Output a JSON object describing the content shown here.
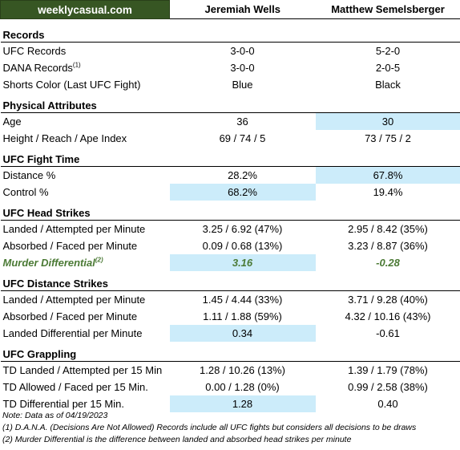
{
  "header": {
    "brand": "weeklycasual.com",
    "fighter1": "Jeremiah Wells",
    "fighter2": "Matthew Semelsberger"
  },
  "sections": {
    "records": {
      "title": "Records",
      "ufc": {
        "label": "UFC Records",
        "v1": "3-0-0",
        "v2": "5-2-0"
      },
      "dana": {
        "label": "DANA Records",
        "sup": "(1)",
        "v1": "3-0-0",
        "v2": "2-0-5"
      },
      "shorts": {
        "label": "Shorts Color (Last UFC Fight)",
        "v1": "Blue",
        "v2": "Black"
      }
    },
    "physical": {
      "title": "Physical Attributes",
      "age": {
        "label": "Age",
        "v1": "36",
        "v2": "30"
      },
      "height": {
        "label": "Height / Reach / Ape Index",
        "v1": "69 / 74 / 5",
        "v2": "73 / 75 / 2"
      }
    },
    "fight_time": {
      "title": "UFC Fight Time",
      "distance": {
        "label": "Distance %",
        "v1": "28.2%",
        "v2": "67.8%"
      },
      "control": {
        "label": "Control %",
        "v1": "68.2%",
        "v2": "19.4%"
      }
    },
    "head": {
      "title": "UFC Head Strikes",
      "landed": {
        "label": "Landed / Attempted per Minute",
        "v1": "3.25 / 6.92 (47%)",
        "v2": "2.95 / 8.42 (35%)"
      },
      "absorbed": {
        "label": "Absorbed / Faced per Minute",
        "v1": "0.09 / 0.68 (13%)",
        "v2": "3.23 / 8.87 (36%)"
      },
      "murder": {
        "label": "Murder Differential",
        "sup": "(2)",
        "v1": "3.16",
        "v2": "-0.28"
      }
    },
    "distance": {
      "title": "UFC Distance Strikes",
      "landed": {
        "label": "Landed / Attempted per Minute",
        "v1": "1.45 / 4.44 (33%)",
        "v2": "3.71 / 9.28 (40%)"
      },
      "absorbed": {
        "label": "Absorbed / Faced per Minute",
        "v1": "1.11 / 1.88 (59%)",
        "v2": "4.32 / 10.16 (43%)"
      },
      "diff": {
        "label": "Landed Differential per Minute",
        "v1": "0.34",
        "v2": "-0.61"
      }
    },
    "grappling": {
      "title": "UFC Grappling",
      "td_landed": {
        "label": "TD Landed / Attempted per 15 Min",
        "v1": "1.28 / 10.26 (13%)",
        "v2": "1.39 / 1.79 (78%)"
      },
      "td_allowed": {
        "label": "TD Allowed / Faced per 15 Min.",
        "v1": "0.00 / 1.28 (0%)",
        "v2": "0.99 / 2.58 (38%)"
      },
      "td_diff": {
        "label": "TD Differential per 15 Min.",
        "v1": "1.28",
        "v2": "0.40"
      }
    }
  },
  "notes": {
    "date": "Note: Data as of 04/19/2023",
    "n1": "(1) D.A.N.A. (Decisions Are Not Allowed) Records include all UFC fights but considers all decisions to be draws",
    "n2": "(2) Murder Differential is the difference between landed and absorbed head strikes per minute"
  },
  "colors": {
    "brand_bg": "#375623",
    "highlight": "#ccecfa",
    "murder_text": "#4b7a35"
  }
}
